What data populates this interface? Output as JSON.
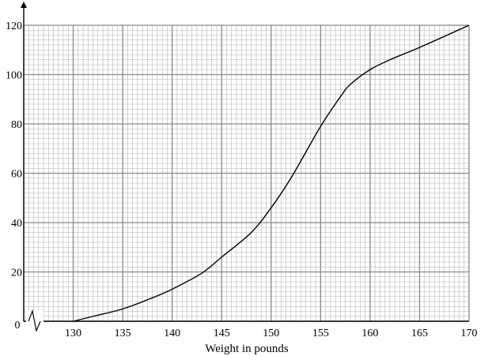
{
  "chart_data": {
    "type": "line",
    "title": "",
    "xlabel": "Weight in pounds",
    "ylabel": "",
    "origin_label": "0",
    "xlim": [
      125,
      170
    ],
    "ylim": [
      0,
      120
    ],
    "x_ticks": [
      130,
      135,
      140,
      145,
      150,
      155,
      160,
      165,
      170
    ],
    "y_ticks": [
      20,
      40,
      60,
      80,
      100,
      120
    ],
    "grid": true,
    "axis_break": true,
    "series": [
      {
        "color": "#000000",
        "points": [
          {
            "x": 130,
            "y": 0
          },
          {
            "x": 132,
            "y": 2
          },
          {
            "x": 135,
            "y": 5
          },
          {
            "x": 138,
            "y": 9.5
          },
          {
            "x": 140,
            "y": 13
          },
          {
            "x": 143,
            "y": 19.5
          },
          {
            "x": 145,
            "y": 26
          },
          {
            "x": 148,
            "y": 36
          },
          {
            "x": 150,
            "y": 46
          },
          {
            "x": 152,
            "y": 58
          },
          {
            "x": 155,
            "y": 79
          },
          {
            "x": 157,
            "y": 91
          },
          {
            "x": 158,
            "y": 96
          },
          {
            "x": 160,
            "y": 102
          },
          {
            "x": 162,
            "y": 106
          },
          {
            "x": 165,
            "y": 111
          },
          {
            "x": 170,
            "y": 120
          }
        ]
      }
    ]
  },
  "colors": {
    "minor_grid": "#b3b3b3",
    "major_grid": "#8a8a8a",
    "axis": "#000000"
  }
}
